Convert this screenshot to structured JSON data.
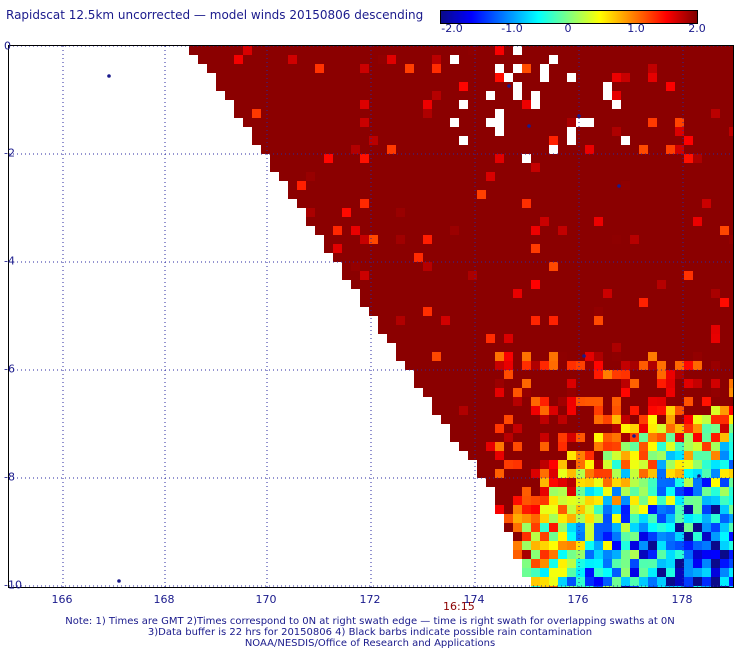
{
  "title": "Rapidscat 12.5km uncorrected — model winds 20150806 descending",
  "colorbar": {
    "ticks": [
      "-2.0",
      "-1.0",
      "0",
      "1.0",
      "2.0"
    ]
  },
  "y_ticks": [
    "0",
    "-2",
    "-4",
    "-6",
    "-8",
    "-10"
  ],
  "x_ticks": [
    "166",
    "168",
    "170",
    "172",
    "174",
    "176",
    "178"
  ],
  "time_label": "16:15",
  "notes": [
    "Note: 1) Times are GMT 2)Times correspond to 0N at right swath edge — time is right swath for overlapping swaths at 0N",
    "3)Data buffer is 22 hrs for 20150806 4) Black barbs indicate possible rain contamination",
    "NOAA/NESDIS/Office of Research and Applications"
  ],
  "colors": {
    "dark_red": "#8b0000",
    "grid": "#2a2aa0",
    "text": "#1a1a8c"
  },
  "map_data": {
    "lon_range": [
      165.8,
      179.0
    ],
    "lat_range": [
      -10.0,
      0.1
    ],
    "swath_edge": "diagonal from upper-left to lower-right; data east of edge",
    "value_range": [
      -2.0,
      2.0
    ]
  }
}
